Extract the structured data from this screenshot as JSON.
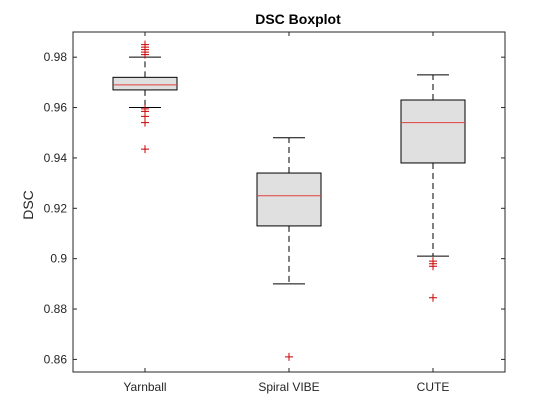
{
  "chart_data": {
    "type": "boxplot",
    "title": "DSC Boxplot",
    "xlabel": "",
    "ylabel": "DSC",
    "ylim": [
      0.855,
      0.99
    ],
    "yticks": [
      0.86,
      0.88,
      0.9,
      0.92,
      0.94,
      0.96,
      0.98
    ],
    "ytick_labels": [
      "0.86",
      "0.88",
      "0.9",
      "0.92",
      "0.94",
      "0.96",
      "0.98"
    ],
    "grid": false,
    "categories": [
      "Yarnball",
      "Spiral VIBE",
      "CUTE"
    ],
    "boxes": [
      {
        "category": "Yarnball",
        "whisker_low": 0.96,
        "q1": 0.967,
        "median": 0.969,
        "q3": 0.972,
        "whisker_high": 0.98,
        "outliers": [
          0.9435,
          0.954,
          0.9565,
          0.9585,
          0.9595,
          0.981,
          0.982,
          0.983,
          0.984,
          0.985
        ]
      },
      {
        "category": "Spiral VIBE",
        "whisker_low": 0.89,
        "q1": 0.913,
        "median": 0.925,
        "q3": 0.934,
        "whisker_high": 0.948,
        "outliers": [
          0.861
        ]
      },
      {
        "category": "CUTE",
        "whisker_low": 0.901,
        "q1": 0.938,
        "median": 0.954,
        "q3": 0.963,
        "whisker_high": 0.973,
        "outliers": [
          0.8845,
          0.897,
          0.898,
          0.899
        ]
      }
    ]
  },
  "colors": {
    "box_fill": "#e0e0e0",
    "box_edge": "#000000",
    "median": "#e04040",
    "outlier": "#cc0000",
    "axis": "#262626"
  }
}
